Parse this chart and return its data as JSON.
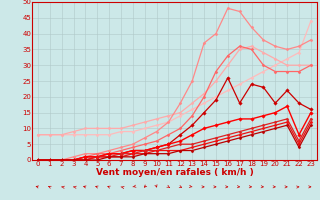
{
  "bg_color": "#cce8e8",
  "grid_color": "#b0c8c8",
  "xlabel": "Vent moyen/en rafales ( km/h )",
  "xlabel_color": "#cc0000",
  "xlabel_fontsize": 6.5,
  "xtick_fontsize": 5.0,
  "ytick_fontsize": 5.0,
  "xlim": [
    -0.5,
    23.5
  ],
  "ylim": [
    0,
    50
  ],
  "yticks": [
    0,
    5,
    10,
    15,
    20,
    25,
    30,
    35,
    40,
    45,
    50
  ],
  "xticks": [
    0,
    1,
    2,
    3,
    4,
    5,
    6,
    7,
    8,
    9,
    10,
    11,
    12,
    13,
    14,
    15,
    16,
    17,
    18,
    19,
    20,
    21,
    22,
    23
  ],
  "lines": [
    {
      "x": [
        0,
        1,
        2,
        3,
        4,
        5,
        6,
        7,
        8,
        9,
        10,
        11,
        12,
        13,
        14,
        15,
        16,
        17,
        18,
        19,
        20,
        21,
        22,
        23
      ],
      "y": [
        8,
        8,
        8,
        8,
        8,
        8,
        8,
        9,
        9,
        10,
        11,
        12,
        14,
        16,
        18,
        20,
        22,
        24,
        26,
        28,
        30,
        32,
        34,
        44
      ],
      "color": "#ffbbbb",
      "lw": 0.9,
      "marker": "D",
      "ms": 1.5
    },
    {
      "x": [
        0,
        1,
        2,
        3,
        4,
        5,
        6,
        7,
        8,
        9,
        10,
        11,
        12,
        13,
        14,
        15,
        16,
        17,
        18,
        19,
        20,
        21,
        22,
        23
      ],
      "y": [
        8,
        8,
        8,
        9,
        10,
        10,
        10,
        10,
        11,
        12,
        13,
        14,
        15,
        18,
        21,
        25,
        30,
        35,
        36,
        34,
        32,
        30,
        30,
        30
      ],
      "color": "#ffaaaa",
      "lw": 0.9,
      "marker": "D",
      "ms": 1.5
    },
    {
      "x": [
        0,
        1,
        2,
        3,
        4,
        5,
        6,
        7,
        8,
        9,
        10,
        11,
        12,
        13,
        14,
        15,
        16,
        17,
        18,
        19,
        20,
        21,
        22,
        23
      ],
      "y": [
        0,
        0,
        0,
        1,
        2,
        2,
        3,
        4,
        5,
        7,
        9,
        12,
        18,
        25,
        37,
        40,
        48,
        47,
        42,
        38,
        36,
        35,
        36,
        38
      ],
      "color": "#ff8888",
      "lw": 0.9,
      "marker": "D",
      "ms": 1.5
    },
    {
      "x": [
        0,
        1,
        2,
        3,
        4,
        5,
        6,
        7,
        8,
        9,
        10,
        11,
        12,
        13,
        14,
        15,
        16,
        17,
        18,
        19,
        20,
        21,
        22,
        23
      ],
      "y": [
        0,
        0,
        0,
        0,
        1,
        2,
        2,
        3,
        4,
        5,
        6,
        8,
        10,
        14,
        20,
        28,
        33,
        36,
        35,
        30,
        28,
        28,
        28,
        30
      ],
      "color": "#ff6666",
      "lw": 0.9,
      "marker": "D",
      "ms": 1.5
    },
    {
      "x": [
        0,
        1,
        2,
        3,
        4,
        5,
        6,
        7,
        8,
        9,
        10,
        11,
        12,
        13,
        14,
        15,
        16,
        17,
        18,
        19,
        20,
        21,
        22,
        23
      ],
      "y": [
        0,
        0,
        0,
        0,
        1,
        1,
        2,
        2,
        3,
        3,
        4,
        5,
        8,
        11,
        15,
        19,
        26,
        18,
        24,
        23,
        18,
        22,
        18,
        16
      ],
      "color": "#cc0000",
      "lw": 0.9,
      "marker": "D",
      "ms": 1.8
    },
    {
      "x": [
        0,
        1,
        2,
        3,
        4,
        5,
        6,
        7,
        8,
        9,
        10,
        11,
        12,
        13,
        14,
        15,
        16,
        17,
        18,
        19,
        20,
        21,
        22,
        23
      ],
      "y": [
        0,
        0,
        0,
        0,
        1,
        1,
        2,
        2,
        3,
        3,
        4,
        5,
        6,
        8,
        10,
        11,
        12,
        13,
        13,
        14,
        15,
        17,
        8,
        15
      ],
      "color": "#ff0000",
      "lw": 1.0,
      "marker": "D",
      "ms": 1.8
    },
    {
      "x": [
        0,
        1,
        2,
        3,
        4,
        5,
        6,
        7,
        8,
        9,
        10,
        11,
        12,
        13,
        14,
        15,
        16,
        17,
        18,
        19,
        20,
        21,
        22,
        23
      ],
      "y": [
        0,
        0,
        0,
        0,
        0,
        1,
        1,
        2,
        2,
        3,
        3,
        4,
        5,
        5,
        6,
        7,
        8,
        9,
        10,
        11,
        12,
        13,
        6,
        13
      ],
      "color": "#dd2222",
      "lw": 0.9,
      "marker": "D",
      "ms": 1.5
    },
    {
      "x": [
        0,
        1,
        2,
        3,
        4,
        5,
        6,
        7,
        8,
        9,
        10,
        11,
        12,
        13,
        14,
        15,
        16,
        17,
        18,
        19,
        20,
        21,
        22,
        23
      ],
      "y": [
        0,
        0,
        0,
        0,
        0,
        1,
        1,
        1,
        2,
        2,
        3,
        3,
        3,
        4,
        5,
        6,
        7,
        8,
        9,
        10,
        11,
        12,
        5,
        12
      ],
      "color": "#ee1111",
      "lw": 0.9,
      "marker": "D",
      "ms": 1.5
    },
    {
      "x": [
        0,
        1,
        2,
        3,
        4,
        5,
        6,
        7,
        8,
        9,
        10,
        11,
        12,
        13,
        14,
        15,
        16,
        17,
        18,
        19,
        20,
        21,
        22,
        23
      ],
      "y": [
        0,
        0,
        0,
        0,
        0,
        0,
        1,
        1,
        1,
        2,
        2,
        2,
        3,
        3,
        4,
        5,
        6,
        7,
        8,
        9,
        10,
        11,
        4,
        11
      ],
      "color": "#bb0000",
      "lw": 0.9,
      "marker": "D",
      "ms": 1.5
    }
  ],
  "wind_arrow_angles": [
    225,
    210,
    240,
    240,
    225,
    220,
    215,
    230,
    310,
    345,
    5,
    25,
    35,
    55,
    90,
    90,
    85,
    75,
    80,
    80,
    85,
    90,
    105,
    90
  ],
  "arrow_color": "#cc0000"
}
